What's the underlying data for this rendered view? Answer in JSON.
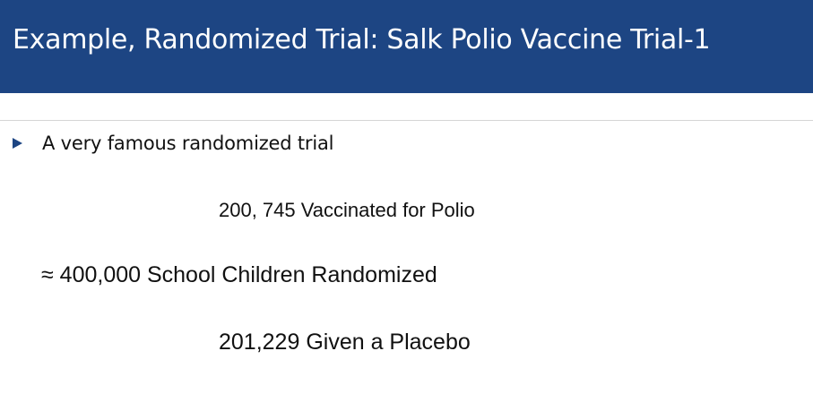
{
  "slide": {
    "title": "Example, Randomized Trial: Salk Polio Vaccine Trial-1",
    "bullet": {
      "icon": "triangle-right-icon",
      "text": "A very famous randomized trial"
    },
    "lines": {
      "vaccinated": "200, 745 Vaccinated for Polio",
      "randomized": "≈ 400,000 School Children Randomized",
      "placebo": "201,229 Given a Placebo"
    },
    "colors": {
      "title_bar": "#1d4583",
      "title_text": "#ffffff",
      "bullet": "#1d4583",
      "body_text": "#111111"
    }
  }
}
